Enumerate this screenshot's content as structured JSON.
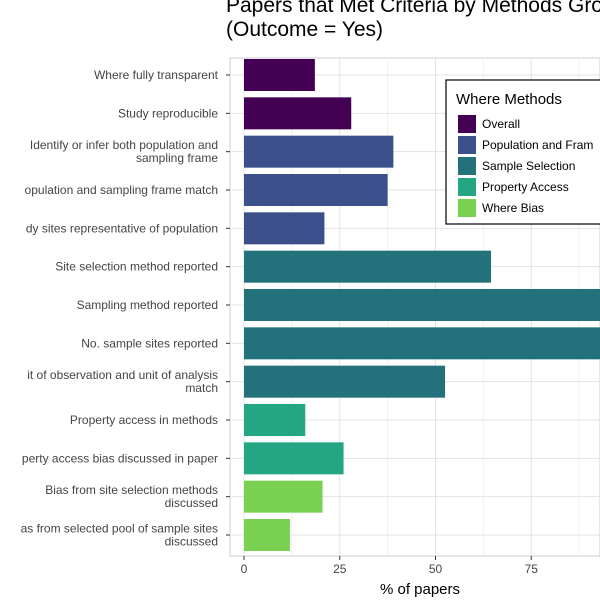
{
  "chart_data": {
    "type": "bar",
    "orientation": "horizontal",
    "title_lines": [
      "Papers that Met Criteria by Methods Gro",
      "(Outcome = Yes)"
    ],
    "xlabel": "% of papers",
    "ylabel": "",
    "xlim": [
      0,
      93
    ],
    "x_ticks": [
      0,
      25,
      50,
      75
    ],
    "grid": true,
    "categories": [
      {
        "lines": [
          "Where fully transparent"
        ],
        "value": 18.5,
        "group": "Overall"
      },
      {
        "lines": [
          "Study reproducible"
        ],
        "value": 28,
        "group": "Overall"
      },
      {
        "lines": [
          "Identify or infer both population and",
          "sampling frame"
        ],
        "value": 39,
        "group": "Population and Frame"
      },
      {
        "lines": [
          "opulation and sampling frame match"
        ],
        "value": 37.5,
        "group": "Population and Frame"
      },
      {
        "lines": [
          "dy sites representative of population"
        ],
        "value": 21,
        "group": "Population and Frame"
      },
      {
        "lines": [
          "Site selection method reported"
        ],
        "value": 64.5,
        "group": "Sample Selection"
      },
      {
        "lines": [
          "Sampling method reported"
        ],
        "value": 93,
        "group": "Sample Selection"
      },
      {
        "lines": [
          "No. sample sites reported"
        ],
        "value": 93,
        "group": "Sample Selection"
      },
      {
        "lines": [
          "it of observation and unit of analysis",
          "match"
        ],
        "value": 52.5,
        "group": "Sample Selection"
      },
      {
        "lines": [
          "Property access in methods"
        ],
        "value": 16,
        "group": "Property Access"
      },
      {
        "lines": [
          "perty access bias discussed in paper"
        ],
        "value": 26,
        "group": "Property Access"
      },
      {
        "lines": [
          "Bias from site selection methods",
          "discussed"
        ],
        "value": 20.5,
        "group": "Where Bias"
      },
      {
        "lines": [
          "as from selected pool of sample sites",
          "discussed"
        ],
        "value": 12,
        "group": "Where Bias"
      }
    ],
    "legend": {
      "title": "Where Methods",
      "placement": "top-right",
      "entries": [
        {
          "group": "Overall",
          "label": "Overall",
          "color": "#440154"
        },
        {
          "group": "Population and Frame",
          "label": "Population and Fram",
          "color": "#3b4f8a"
        },
        {
          "group": "Sample Selection",
          "label": "Sample Selection",
          "color": "#22717b"
        },
        {
          "group": "Property Access",
          "label": "Property Access",
          "color": "#24a683"
        },
        {
          "group": "Where Bias",
          "label": "Where Bias",
          "color": "#7ad151"
        }
      ]
    }
  }
}
